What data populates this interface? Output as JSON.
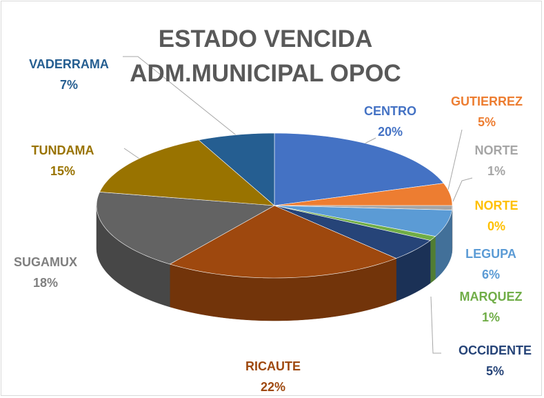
{
  "chart_data": {
    "type": "pie",
    "title": "ESTADO VENCIDA ADM.MUNICIPAL OPOC",
    "categories": [
      "CENTRO",
      "GUTIERREZ",
      "NORTE",
      "NORTE",
      "LEGUPA",
      "MARQUEZ",
      "OCCIDENTE",
      "RICAUTE",
      "SUGAMUX",
      "TUNDAMA",
      "VADERRAMA"
    ],
    "values": [
      20,
      5,
      1,
      0,
      6,
      1,
      5,
      22,
      18,
      15,
      7
    ],
    "value_labels": [
      "20%",
      "5%",
      "1%",
      "0%",
      "6%",
      "1%",
      "5%",
      "22%",
      "18%",
      "15%",
      "7%"
    ],
    "colors": [
      "#4472c4",
      "#ed7d31",
      "#a5a5a5",
      "#ffc000",
      "#5b9bd5",
      "#70ad47",
      "#264478",
      "#9e480e",
      "#636363",
      "#997300",
      "#255e91"
    ]
  }
}
